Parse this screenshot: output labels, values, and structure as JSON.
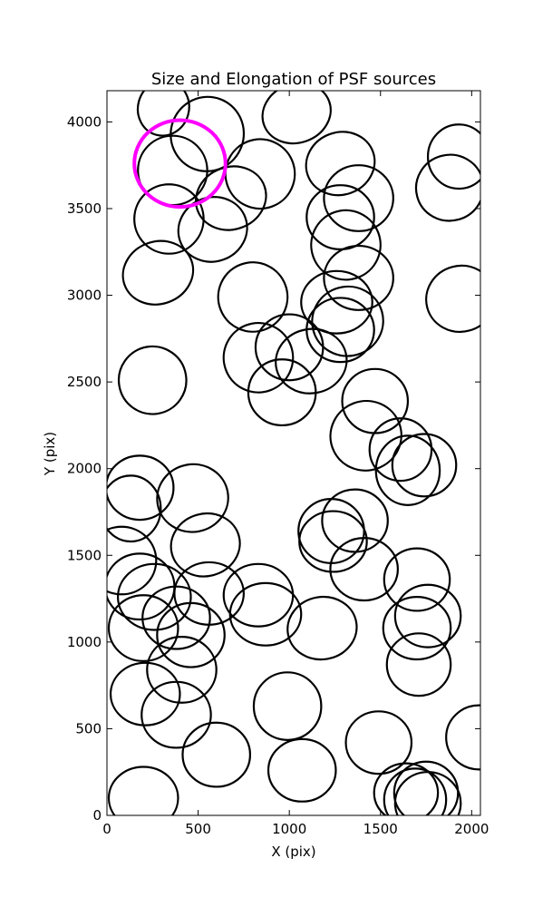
{
  "chart_data": {
    "type": "scatter",
    "title": "Size and Elongation of PSF sources",
    "xlabel": "X (pix)",
    "ylabel": "Y (pix)",
    "xlim": [
      0,
      2048
    ],
    "ylim": [
      0,
      4180
    ],
    "xticks": [
      0,
      500,
      1000,
      1500,
      2000
    ],
    "yticks": [
      0,
      500,
      1000,
      1500,
      2000,
      2500,
      3000,
      3500,
      4000
    ],
    "grid": false,
    "legend": "none",
    "source_color": "#000000",
    "highlight_color": "#ff00ff",
    "ellipses": [
      {
        "x": 310,
        "y": 4080,
        "rx": 140,
        "ry": 160,
        "angle": 15
      },
      {
        "x": 550,
        "y": 3930,
        "rx": 200,
        "ry": 215,
        "angle": 20
      },
      {
        "x": 1040,
        "y": 4050,
        "rx": 190,
        "ry": 170,
        "angle": -20
      },
      {
        "x": 1280,
        "y": 3760,
        "rx": 190,
        "ry": 180,
        "angle": -20
      },
      {
        "x": 840,
        "y": 3700,
        "rx": 190,
        "ry": 200,
        "angle": -20
      },
      {
        "x": 680,
        "y": 3560,
        "rx": 195,
        "ry": 180,
        "angle": -20
      },
      {
        "x": 1380,
        "y": 3560,
        "rx": 190,
        "ry": 190,
        "angle": 0
      },
      {
        "x": 1280,
        "y": 3450,
        "rx": 185,
        "ry": 185,
        "angle": 0
      },
      {
        "x": 1310,
        "y": 3290,
        "rx": 190,
        "ry": 200,
        "angle": -20
      },
      {
        "x": 1380,
        "y": 3100,
        "rx": 190,
        "ry": 185,
        "angle": 0
      },
      {
        "x": 1260,
        "y": 2960,
        "rx": 195,
        "ry": 180,
        "angle": 0
      },
      {
        "x": 1320,
        "y": 2850,
        "rx": 195,
        "ry": 200,
        "angle": -15
      },
      {
        "x": 360,
        "y": 3720,
        "rx": 190,
        "ry": 200,
        "angle": 0
      },
      {
        "x": 340,
        "y": 3440,
        "rx": 190,
        "ry": 200,
        "angle": 0
      },
      {
        "x": 580,
        "y": 3380,
        "rx": 190,
        "ry": 185,
        "angle": -20
      },
      {
        "x": 280,
        "y": 3130,
        "rx": 195,
        "ry": 180,
        "angle": -20
      },
      {
        "x": 1930,
        "y": 3800,
        "rx": 170,
        "ry": 185,
        "angle": 0
      },
      {
        "x": 1880,
        "y": 3620,
        "rx": 185,
        "ry": 190,
        "angle": -15
      },
      {
        "x": 1940,
        "y": 2980,
        "rx": 190,
        "ry": 190,
        "angle": -15
      },
      {
        "x": 800,
        "y": 2990,
        "rx": 190,
        "ry": 200,
        "angle": -20
      },
      {
        "x": 830,
        "y": 2640,
        "rx": 190,
        "ry": 200,
        "angle": -20
      },
      {
        "x": 1000,
        "y": 2700,
        "rx": 185,
        "ry": 190,
        "angle": 0
      },
      {
        "x": 1120,
        "y": 2620,
        "rx": 195,
        "ry": 185,
        "angle": -10
      },
      {
        "x": 960,
        "y": 2440,
        "rx": 185,
        "ry": 190,
        "angle": 0
      },
      {
        "x": 1280,
        "y": 2800,
        "rx": 185,
        "ry": 185,
        "angle": 0
      },
      {
        "x": 250,
        "y": 2510,
        "rx": 185,
        "ry": 195,
        "angle": -10
      },
      {
        "x": 1470,
        "y": 2390,
        "rx": 180,
        "ry": 185,
        "angle": 0
      },
      {
        "x": 1420,
        "y": 2190,
        "rx": 195,
        "ry": 200,
        "angle": -20
      },
      {
        "x": 1610,
        "y": 2110,
        "rx": 170,
        "ry": 180,
        "angle": 0
      },
      {
        "x": 1650,
        "y": 1990,
        "rx": 175,
        "ry": 200,
        "angle": 0
      },
      {
        "x": 1740,
        "y": 2020,
        "rx": 175,
        "ry": 180,
        "angle": 0
      },
      {
        "x": 180,
        "y": 1890,
        "rx": 185,
        "ry": 185,
        "angle": 0
      },
      {
        "x": 130,
        "y": 1770,
        "rx": 165,
        "ry": 190,
        "angle": 0
      },
      {
        "x": 470,
        "y": 1830,
        "rx": 195,
        "ry": 195,
        "angle": -10
      },
      {
        "x": 1360,
        "y": 1700,
        "rx": 180,
        "ry": 180,
        "angle": 0
      },
      {
        "x": 1230,
        "y": 1640,
        "rx": 180,
        "ry": 185,
        "angle": 0
      },
      {
        "x": 1240,
        "y": 1580,
        "rx": 185,
        "ry": 175,
        "angle": 0
      },
      {
        "x": 1410,
        "y": 1420,
        "rx": 185,
        "ry": 180,
        "angle": 0
      },
      {
        "x": 540,
        "y": 1560,
        "rx": 190,
        "ry": 180,
        "angle": -15
      },
      {
        "x": 80,
        "y": 1470,
        "rx": 190,
        "ry": 195,
        "angle": 0
      },
      {
        "x": 180,
        "y": 1320,
        "rx": 190,
        "ry": 190,
        "angle": 0
      },
      {
        "x": 260,
        "y": 1260,
        "rx": 200,
        "ry": 190,
        "angle": 0
      },
      {
        "x": 560,
        "y": 1280,
        "rx": 190,
        "ry": 180,
        "angle": 0
      },
      {
        "x": 830,
        "y": 1270,
        "rx": 190,
        "ry": 180,
        "angle": 0
      },
      {
        "x": 870,
        "y": 1160,
        "rx": 195,
        "ry": 180,
        "angle": 0
      },
      {
        "x": 1180,
        "y": 1080,
        "rx": 190,
        "ry": 180,
        "angle": -10
      },
      {
        "x": 200,
        "y": 1080,
        "rx": 190,
        "ry": 190,
        "angle": 0
      },
      {
        "x": 380,
        "y": 1140,
        "rx": 185,
        "ry": 180,
        "angle": 0
      },
      {
        "x": 460,
        "y": 1040,
        "rx": 185,
        "ry": 185,
        "angle": 0
      },
      {
        "x": 410,
        "y": 840,
        "rx": 190,
        "ry": 190,
        "angle": 0
      },
      {
        "x": 1700,
        "y": 1360,
        "rx": 180,
        "ry": 180,
        "angle": 0
      },
      {
        "x": 1760,
        "y": 1150,
        "rx": 180,
        "ry": 180,
        "angle": 0
      },
      {
        "x": 1700,
        "y": 1080,
        "rx": 185,
        "ry": 180,
        "angle": 0
      },
      {
        "x": 1710,
        "y": 870,
        "rx": 175,
        "ry": 180,
        "angle": 0
      },
      {
        "x": 210,
        "y": 700,
        "rx": 190,
        "ry": 180,
        "angle": 0
      },
      {
        "x": 380,
        "y": 580,
        "rx": 190,
        "ry": 190,
        "angle": 0
      },
      {
        "x": 990,
        "y": 630,
        "rx": 185,
        "ry": 195,
        "angle": 0
      },
      {
        "x": 600,
        "y": 350,
        "rx": 185,
        "ry": 185,
        "angle": 0
      },
      {
        "x": 1070,
        "y": 260,
        "rx": 185,
        "ry": 180,
        "angle": 0
      },
      {
        "x": 1490,
        "y": 420,
        "rx": 180,
        "ry": 180,
        "angle": 0
      },
      {
        "x": 2040,
        "y": 450,
        "rx": 180,
        "ry": 185,
        "angle": 0
      },
      {
        "x": 200,
        "y": 100,
        "rx": 190,
        "ry": 180,
        "angle": 0
      },
      {
        "x": 1640,
        "y": 130,
        "rx": 175,
        "ry": 170,
        "angle": 0
      },
      {
        "x": 1750,
        "y": 130,
        "rx": 175,
        "ry": 180,
        "angle": 0
      },
      {
        "x": 1760,
        "y": 70,
        "rx": 180,
        "ry": 180,
        "angle": 0
      },
      {
        "x": 1690,
        "y": 90,
        "rx": 170,
        "ry": 180,
        "angle": 0
      }
    ],
    "highlight": {
      "x": 400,
      "y": 3760,
      "r": 250
    }
  }
}
